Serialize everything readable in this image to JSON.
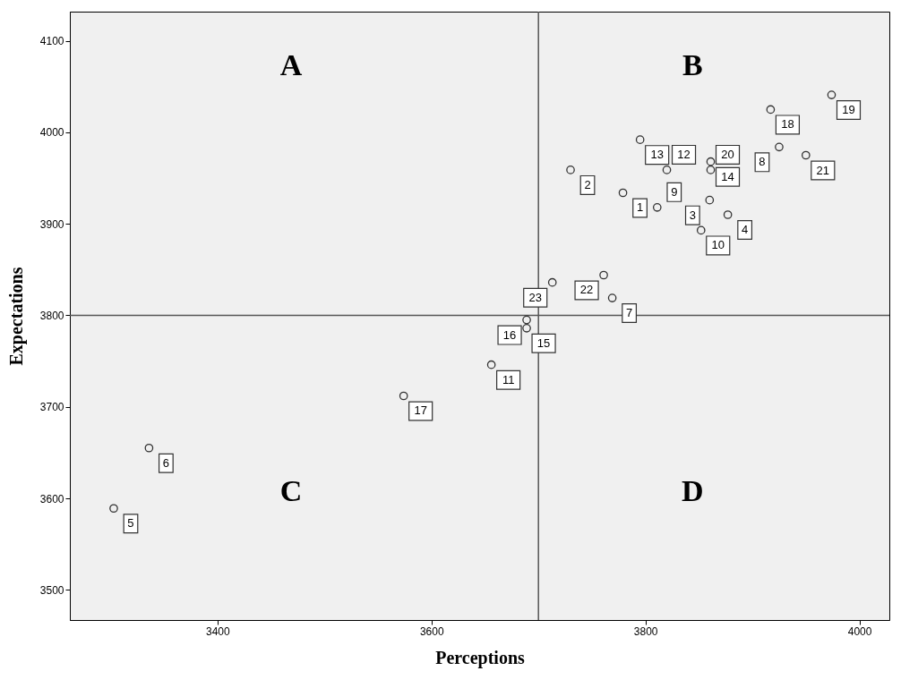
{
  "chart_data": {
    "type": "scatter",
    "xlabel": "Perceptions",
    "ylabel": "Expectations",
    "x": [
      3779,
      3730,
      3860,
      3877,
      3303,
      3336,
      3769,
      3925,
      3811,
      3852,
      3656,
      3820,
      3795,
      3861,
      3689,
      3689,
      3574,
      3917,
      3974,
      3861,
      3950,
      3761,
      3713
    ],
    "series": [
      {
        "color": "#333333",
        "values": [
          3934,
          3959,
          3926,
          3910,
          3589,
          3655,
          3819,
          3984,
          3918,
          3893,
          3746,
          3959,
          3992,
          3968,
          3786,
          3795,
          3712,
          4025,
          4041,
          3959,
          3975,
          3844,
          3836
        ]
      }
    ],
    "xlim": [
      3262,
      4028
    ],
    "ylim": [
      3467,
      4132
    ],
    "xticks": [
      3400,
      3600,
      3800,
      4000
    ],
    "yticks": [
      3500,
      3600,
      3700,
      3800,
      3900,
      4000,
      4100
    ],
    "ref_lines": [
      {
        "axis": "x",
        "value": 3700,
        "color": "#555555"
      },
      {
        "axis": "y",
        "value": 3800,
        "color": "#555555"
      }
    ],
    "annotations": [
      "A",
      "B",
      "C",
      "D",
      {
        "text": "1",
        "x": 3779,
        "y": 3934
      },
      {
        "text": "2",
        "x": 3730,
        "y": 3959
      },
      {
        "text": "3",
        "x": 3860,
        "y": 3926
      },
      {
        "text": "4",
        "x": 3877,
        "y": 3910
      },
      {
        "text": "5",
        "x": 3303,
        "y": 3589
      },
      {
        "text": "6",
        "x": 3336,
        "y": 3655
      },
      {
        "text": "7",
        "x": 3769,
        "y": 3819
      },
      {
        "text": "8",
        "x": 3925,
        "y": 3984
      },
      {
        "text": "9",
        "x": 3811,
        "y": 3918
      },
      {
        "text": "10",
        "x": 3852,
        "y": 3893
      },
      {
        "text": "11",
        "x": 3656,
        "y": 3746
      },
      {
        "text": "12",
        "x": 3820,
        "y": 3959
      },
      {
        "text": "13",
        "x": 3795,
        "y": 3992
      },
      {
        "text": "14",
        "x": 3861,
        "y": 3968
      },
      {
        "text": "15",
        "x": 3689,
        "y": 3786
      },
      {
        "text": "16",
        "x": 3689,
        "y": 3795
      },
      {
        "text": "17",
        "x": 3574,
        "y": 3712
      },
      {
        "text": "18",
        "x": 3917,
        "y": 4025
      },
      {
        "text": "19",
        "x": 3974,
        "y": 4041
      },
      {
        "text": "20",
        "x": 3861,
        "y": 3959
      },
      {
        "text": "21",
        "x": 3950,
        "y": 3975
      },
      {
        "text": "22",
        "x": 3761,
        "y": 3844
      },
      {
        "text": "23",
        "x": 3713,
        "y": 3836
      }
    ],
    "marker": "circle",
    "grid": false
  }
}
